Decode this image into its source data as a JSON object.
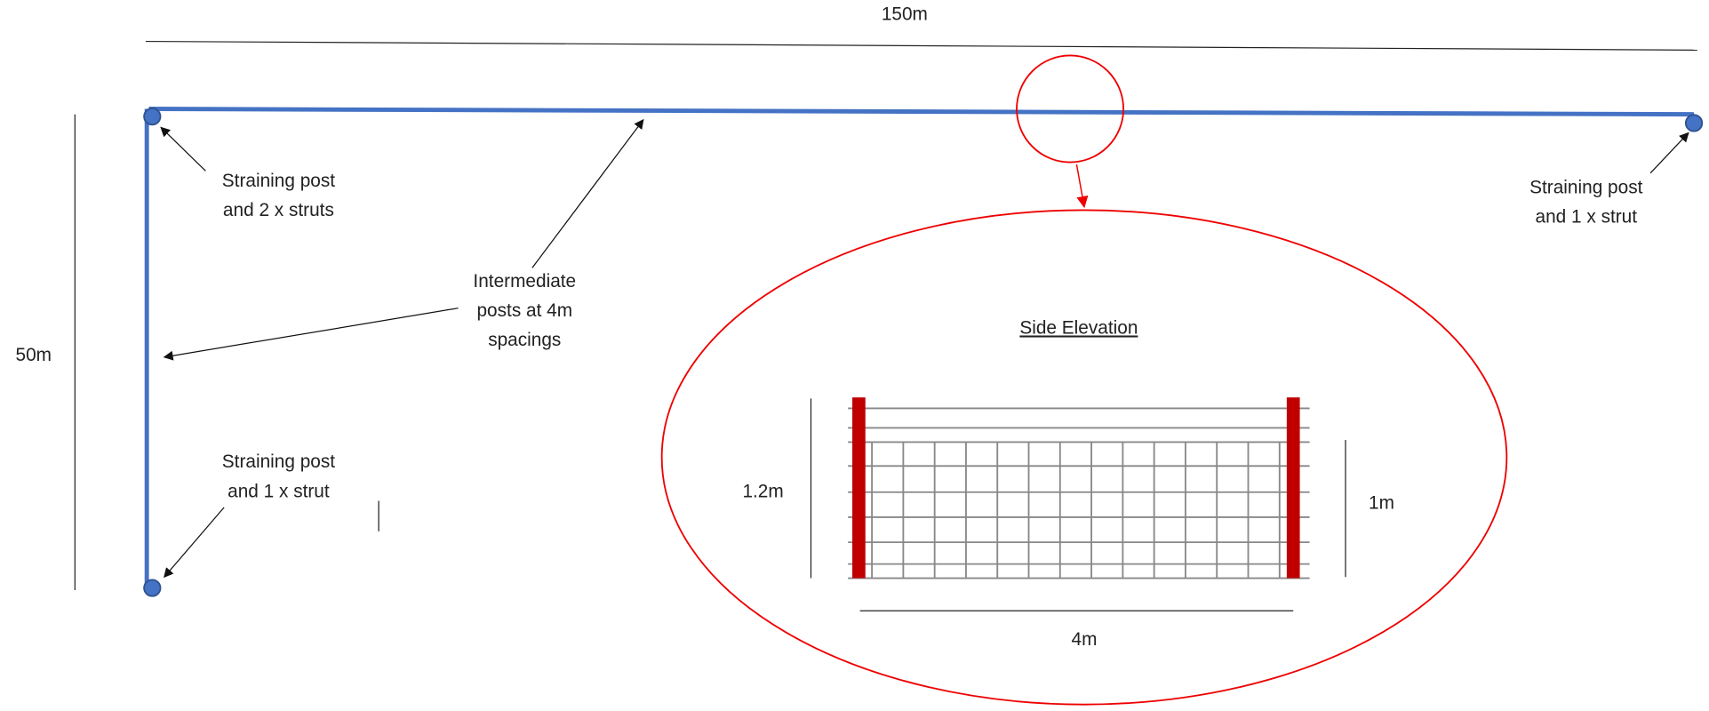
{
  "dimensions": {
    "length": "150m",
    "width": "50m"
  },
  "labels": {
    "top_left_post": [
      "Straining post",
      "and 2 x struts"
    ],
    "intermediate_posts": [
      "Intermediate",
      "posts at 4m",
      "spacings"
    ],
    "bottom_left_post": [
      "Straining post",
      "and 1 x strut"
    ],
    "top_right_post": [
      "Straining post",
      "and 1 x strut"
    ]
  },
  "detail": {
    "title": "Side Elevation",
    "total_height": "1.2m",
    "mesh_height": "1m",
    "post_spacing": "4m"
  }
}
